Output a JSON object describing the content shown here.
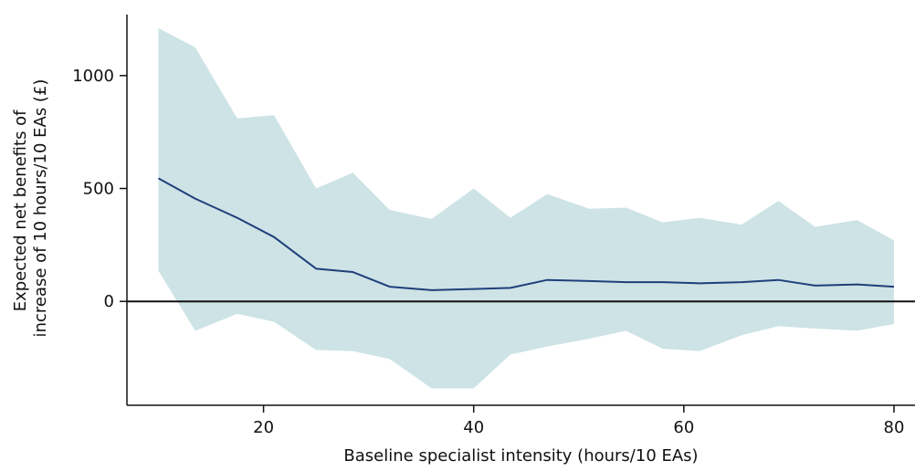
{
  "chart_data": {
    "type": "line",
    "title": "",
    "xlabel": "Baseline specialist intensity (hours/10 EAs)",
    "ylabel": [
      "Expected net benefits of",
      "increase of 10 hours/10 EAs (£)"
    ],
    "xlim": [
      7,
      82
    ],
    "ylim": [
      -460,
      1270
    ],
    "x_ticks": [
      20,
      40,
      60,
      80
    ],
    "y_ticks": [
      0,
      500,
      1000
    ],
    "x_tick_labels": [
      "20",
      "40",
      "60",
      "80"
    ],
    "y_tick_labels": [
      "0",
      "500",
      "1000"
    ],
    "reference_line_y": 0,
    "grid": false,
    "x": [
      10,
      13.5,
      17.5,
      21,
      25,
      28.5,
      32,
      36,
      40,
      43.5,
      47,
      51,
      54.5,
      58,
      61.5,
      65.5,
      69,
      72.5,
      76.5,
      80
    ],
    "series": [
      {
        "type": "line",
        "values": [
          545,
          455,
          370,
          285,
          145,
          130,
          65,
          50,
          55,
          60,
          95,
          90,
          85,
          85,
          80,
          85,
          95,
          70,
          75,
          65
        ]
      },
      {
        "type": "interval",
        "upper": [
          1210,
          1125,
          810,
          825,
          500,
          570,
          405,
          365,
          500,
          370,
          475,
          410,
          415,
          350,
          370,
          340,
          445,
          330,
          360,
          270
        ],
        "lower": [
          135,
          -130,
          -55,
          -90,
          -215,
          -220,
          -255,
          -385,
          -385,
          -235,
          -200,
          -165,
          -130,
          -210,
          -220,
          -150,
          -110,
          -120,
          -130,
          -100
        ]
      }
    ],
    "colors": {
      "line": "#1f3f7a",
      "band": "#cde3e6",
      "axis": "#111111",
      "zero_line": "#111111",
      "text": "#111111"
    }
  }
}
